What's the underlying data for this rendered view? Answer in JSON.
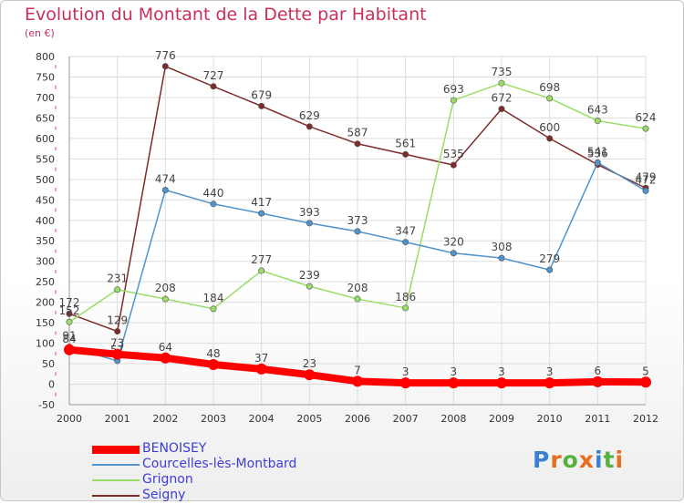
{
  "title": "Evolution du Montant de la Dette par Habitant",
  "subtitle": "(en €)",
  "logo": {
    "text": "Proxiti",
    "colors": [
      "#3a7fd0",
      "#e86d1f",
      "#58b03e",
      "#e86d1f",
      "#3a7fd0",
      "#58b03e",
      "#e86d1f"
    ]
  },
  "chart_data": {
    "type": "line",
    "x": [
      "2000",
      "2001",
      "2002",
      "2003",
      "2004",
      "2005",
      "2006",
      "2007",
      "2008",
      "2009",
      "2010",
      "2011",
      "2012"
    ],
    "ylim": [
      -50,
      800
    ],
    "yticks": [
      -50,
      0,
      50,
      100,
      150,
      200,
      250,
      300,
      350,
      400,
      450,
      500,
      550,
      600,
      650,
      700,
      750,
      800
    ],
    "grid": true,
    "legend_position": "bottom-left",
    "series": [
      {
        "name": "BENOISEY",
        "color": "#ff0000",
        "values": [
          84,
          73,
          64,
          48,
          37,
          23,
          7,
          3,
          3,
          3,
          3,
          6,
          5
        ]
      },
      {
        "name": "Courcelles-lès-Montbard",
        "color": "#4f94cd",
        "values": [
          91,
          57,
          474,
          440,
          417,
          393,
          373,
          347,
          320,
          308,
          279,
          541,
          472
        ]
      },
      {
        "name": "Grignon",
        "color": "#99dd66",
        "values": [
          152,
          231,
          208,
          184,
          277,
          239,
          208,
          186,
          693,
          735,
          698,
          643,
          624
        ]
      },
      {
        "name": "Seigny",
        "color": "#7d2b2b",
        "values": [
          172,
          129,
          776,
          727,
          679,
          629,
          587,
          561,
          535,
          672,
          600,
          536,
          479
        ]
      }
    ]
  }
}
